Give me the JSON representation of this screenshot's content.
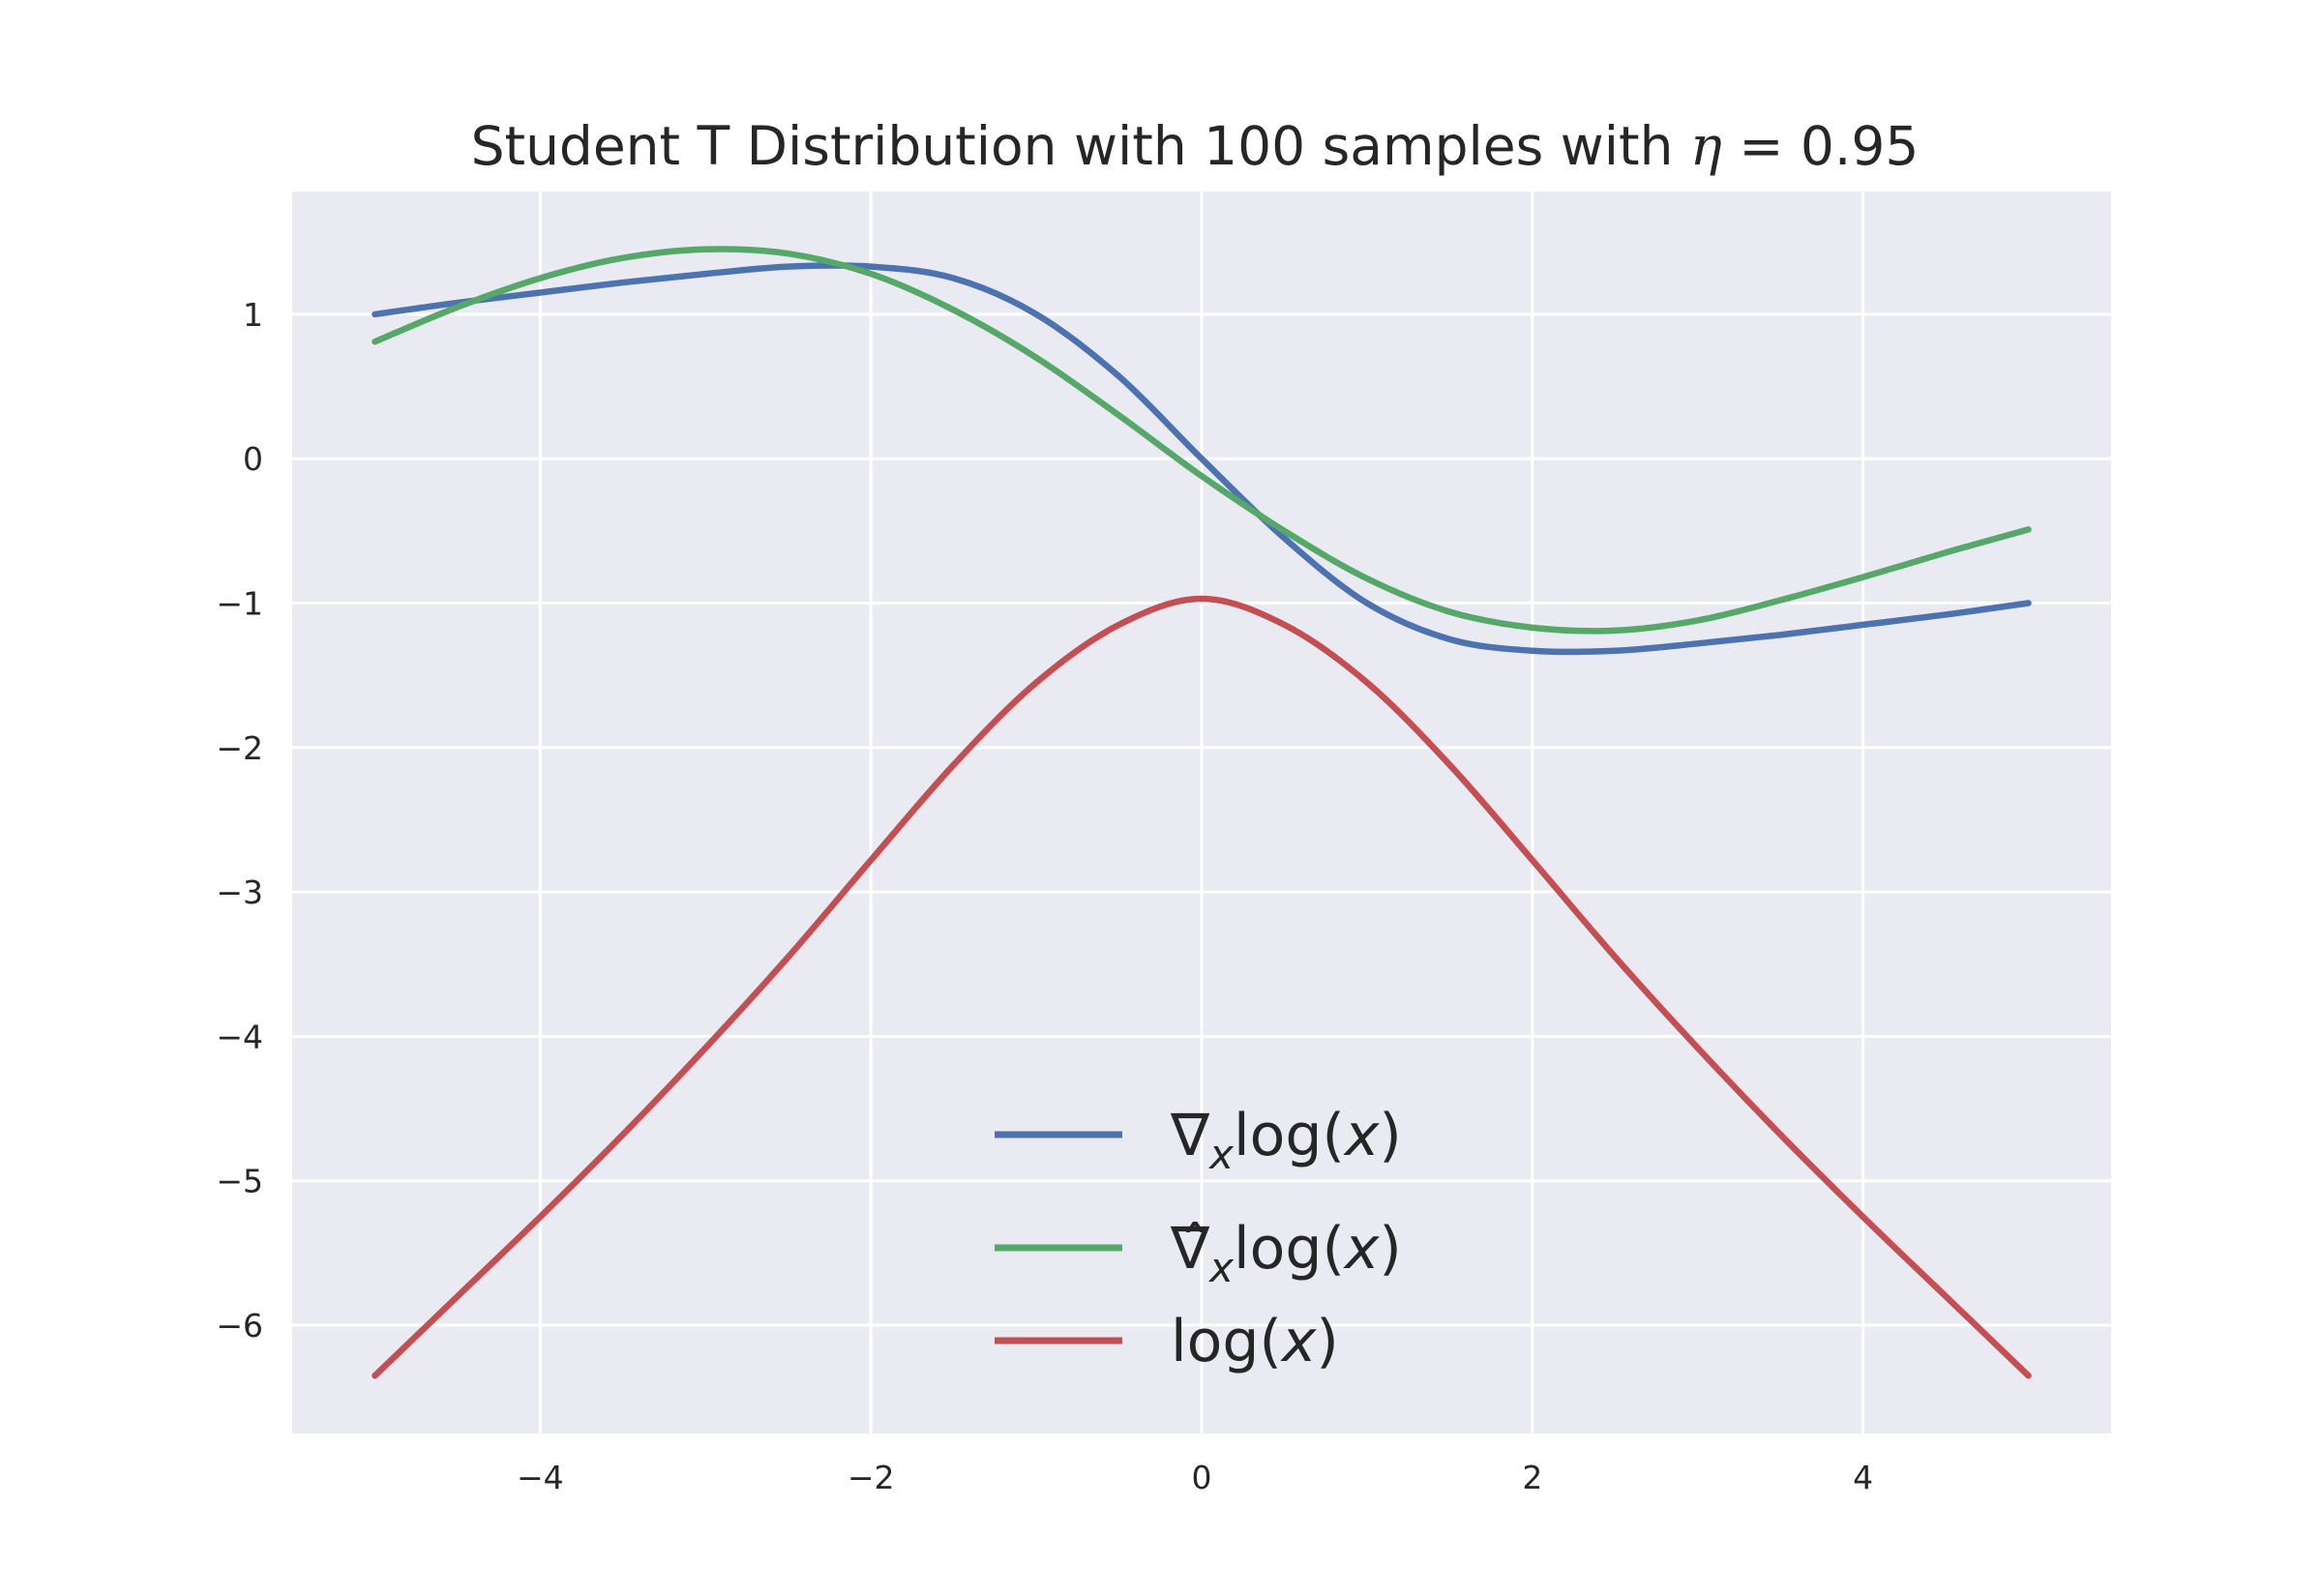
{
  "chart_data": {
    "type": "line",
    "title": {
      "prefix": "Student T Distribution with 100 samples with ",
      "symbol": "η",
      "suffix": " = 0.95"
    },
    "xlabel": "",
    "ylabel": "",
    "xlim": [
      -5.5,
      5.5
    ],
    "ylim": [
      -6.75,
      1.85
    ],
    "x_ticks": [
      -4,
      -2,
      0,
      2,
      4
    ],
    "y_ticks": [
      1,
      0,
      -1,
      -2,
      -3,
      -4,
      -5,
      -6
    ],
    "tick_label_text": {
      "-6": "−6",
      "-5": "−5",
      "-4": "−4",
      "-3": "−3",
      "-2": "−2",
      "-1": "−1",
      "0": "0",
      "1": "1",
      "2": "2",
      "4": "4"
    },
    "grid": true,
    "background": "#eaeaf2",
    "legend_position": "lower center",
    "series": [
      {
        "name": "∇xlog(x)",
        "color": "#4c72b0",
        "x": [
          -5,
          -4.5,
          -4,
          -3.5,
          -3,
          -2.5,
          -2,
          -1.5,
          -1,
          -0.5,
          0,
          0.5,
          1,
          1.5,
          2,
          2.5,
          3,
          3.5,
          4,
          4.5,
          5
        ],
        "y": [
          1.0,
          1.08,
          1.15,
          1.22,
          1.28,
          1.33,
          1.33,
          1.25,
          1.0,
          0.57,
          0.0,
          -0.55,
          -1.0,
          -1.25,
          -1.33,
          -1.33,
          -1.28,
          -1.22,
          -1.15,
          -1.08,
          -1.0
        ]
      },
      {
        "name": "∇̂xlog(x)",
        "color": "#55a868",
        "x": [
          -5,
          -4.5,
          -4,
          -3.5,
          -3,
          -2.5,
          -2,
          -1.5,
          -1,
          -0.5,
          0,
          0.5,
          1,
          1.5,
          2,
          2.5,
          3,
          3.5,
          4,
          4.5,
          5
        ],
        "y": [
          0.81,
          1.05,
          1.25,
          1.39,
          1.45,
          1.42,
          1.28,
          1.03,
          0.7,
          0.3,
          -0.12,
          -0.5,
          -0.83,
          -1.06,
          -1.17,
          -1.19,
          -1.12,
          -0.98,
          -0.82,
          -0.65,
          -0.49
        ]
      },
      {
        "name": "log(x)",
        "color": "#c44e52",
        "x": [
          -5,
          -4.5,
          -4,
          -3.5,
          -3,
          -2.5,
          -2,
          -1.5,
          -1,
          -0.5,
          0,
          0.5,
          1,
          1.5,
          2,
          2.5,
          3,
          3.5,
          4,
          4.5,
          5
        ],
        "y": [
          -6.35,
          -5.8,
          -5.25,
          -4.68,
          -4.08,
          -3.45,
          -2.78,
          -2.12,
          -1.55,
          -1.15,
          -0.97,
          -1.15,
          -1.55,
          -2.12,
          -2.78,
          -3.45,
          -4.08,
          -4.68,
          -5.25,
          -5.8,
          -6.35
        ]
      }
    ]
  }
}
